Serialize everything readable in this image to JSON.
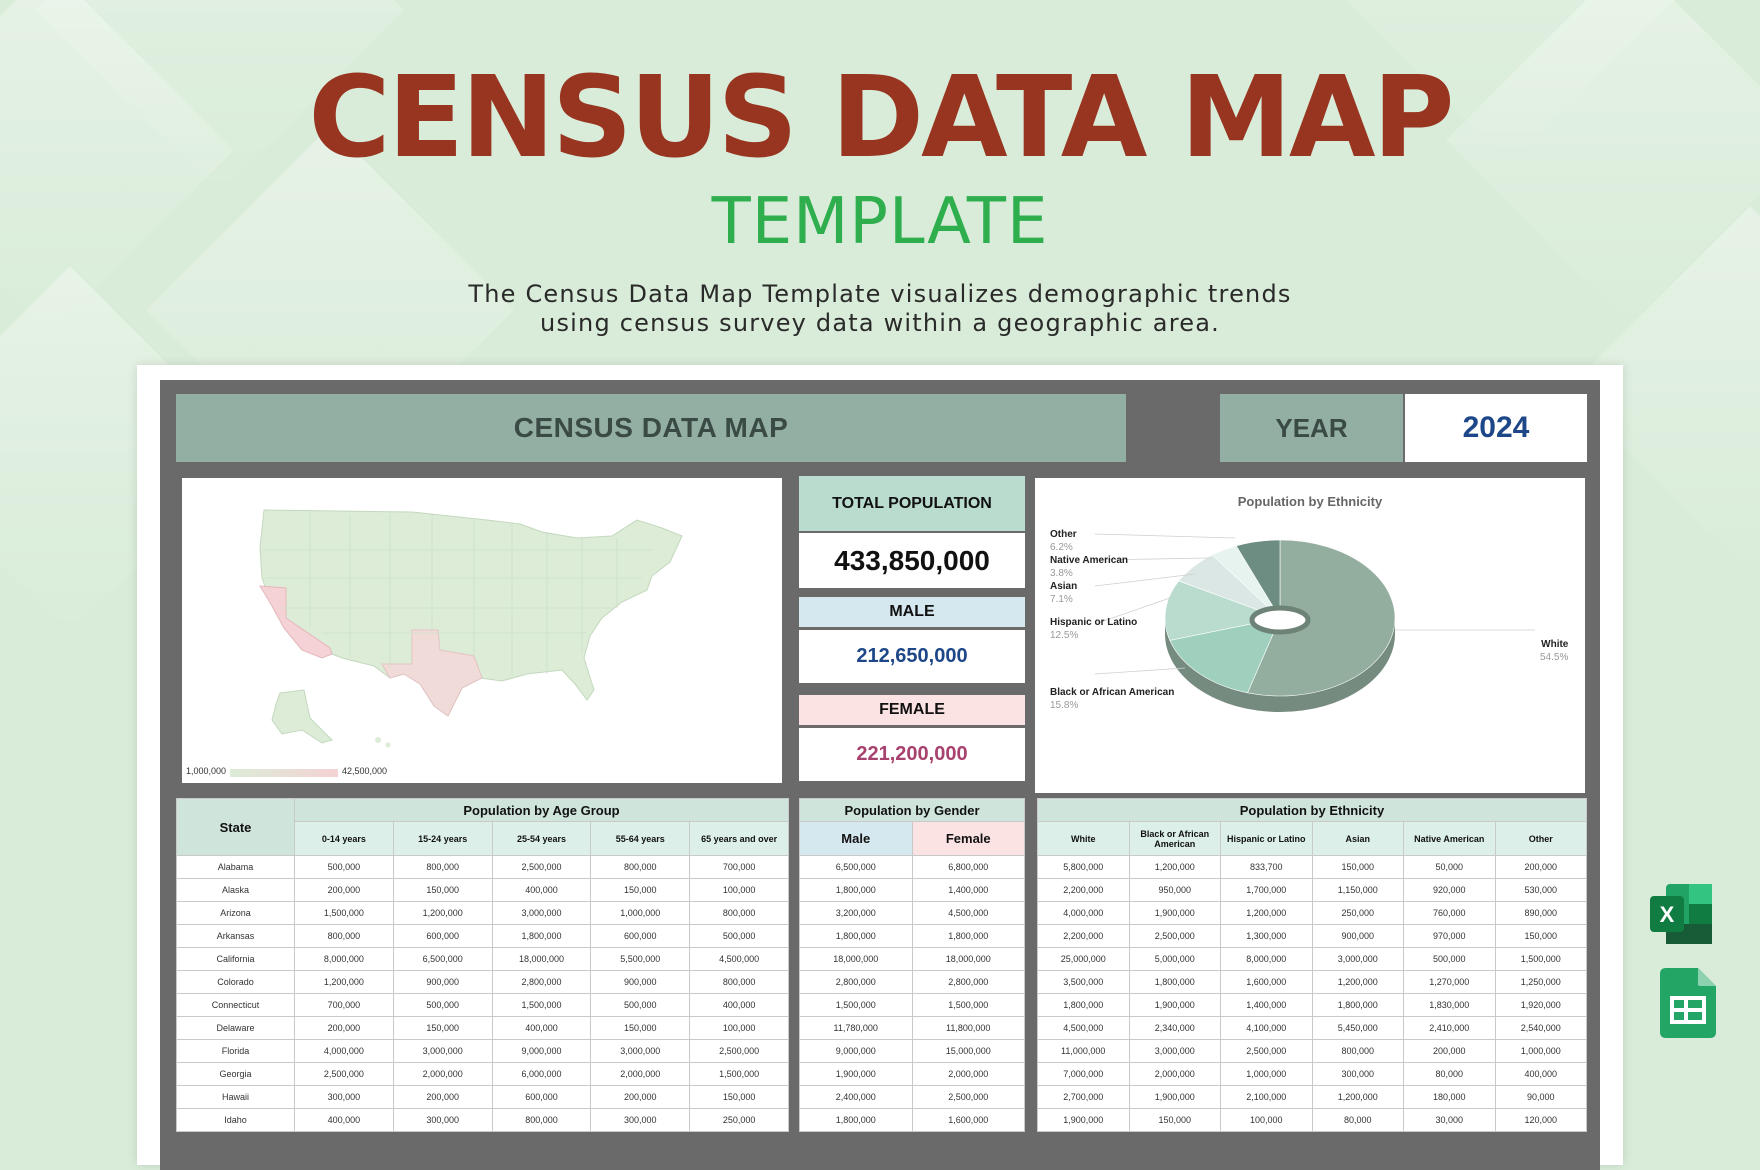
{
  "hero": {
    "title": "CENSUS DATA MAP",
    "subtitle": "TEMPLATE",
    "description_line1": "The Census Data Map Template visualizes demographic trends",
    "description_line2": "using census survey data within a geographic area."
  },
  "dashboard": {
    "title": "CENSUS DATA MAP",
    "year_label": "YEAR",
    "year_value": "2024"
  },
  "map": {
    "legend_min": "1,000,000",
    "legend_max": "42,500,000",
    "color_low": "#dcecd6",
    "color_high": "#f4d2d5"
  },
  "kpis": {
    "total_label": "TOTAL POPULATION",
    "total_value": "433,850,000",
    "male_label": "MALE",
    "male_value": "212,650,000",
    "female_label": "FEMALE",
    "female_value": "221,200,000"
  },
  "colors": {
    "brand_red": "#983521",
    "brand_green": "#2fae4e",
    "male_blue": "#1d4788",
    "female_pink": "#a8416e"
  },
  "chart_data": {
    "type": "pie",
    "title": "Population by Ethnicity",
    "labels": [
      "White",
      "Black or African American",
      "Hispanic or Latino",
      "Asian",
      "Native American",
      "Other"
    ],
    "values": [
      54.5,
      15.8,
      12.5,
      7.1,
      3.8,
      6.2
    ],
    "value_labels": [
      "54.5%",
      "15.8%",
      "12.5%",
      "7.1%",
      "3.8%",
      "6.2%"
    ],
    "colors": [
      "#93ae9f",
      "#9fcfbd",
      "#b9dccf",
      "#dbe7e4",
      "#e6f3ef",
      "#6d8d83"
    ],
    "donut": true
  },
  "tables": {
    "state_header": "State",
    "age_group_title": "Population by Age Group",
    "age_columns": [
      "0-14 years",
      "15-24 years",
      "25-54 years",
      "55-64 years",
      "65 years and over"
    ],
    "gender_title": "Population by Gender",
    "gender_columns": [
      "Male",
      "Female"
    ],
    "ethnicity_title": "Population by Ethnicity",
    "ethnicity_columns": [
      "White",
      "Black or African American",
      "Hispanic or Latino",
      "Asian",
      "Native American",
      "Other"
    ],
    "rows": [
      {
        "state": "Alabama",
        "age": [
          "500,000",
          "800,000",
          "2,500,000",
          "800,000",
          "700,000"
        ],
        "gender": [
          "6,500,000",
          "6,800,000"
        ],
        "eth": [
          "5,800,000",
          "1,200,000",
          "833,700",
          "150,000",
          "50,000",
          "200,000"
        ]
      },
      {
        "state": "Alaska",
        "age": [
          "200,000",
          "150,000",
          "400,000",
          "150,000",
          "100,000"
        ],
        "gender": [
          "1,800,000",
          "1,400,000"
        ],
        "eth": [
          "2,200,000",
          "950,000",
          "1,700,000",
          "1,150,000",
          "920,000",
          "530,000"
        ]
      },
      {
        "state": "Arizona",
        "age": [
          "1,500,000",
          "1,200,000",
          "3,000,000",
          "1,000,000",
          "800,000"
        ],
        "gender": [
          "3,200,000",
          "4,500,000"
        ],
        "eth": [
          "4,000,000",
          "1,900,000",
          "1,200,000",
          "250,000",
          "760,000",
          "890,000"
        ]
      },
      {
        "state": "Arkansas",
        "age": [
          "800,000",
          "600,000",
          "1,800,000",
          "600,000",
          "500,000"
        ],
        "gender": [
          "1,800,000",
          "1,800,000"
        ],
        "eth": [
          "2,200,000",
          "2,500,000",
          "1,300,000",
          "900,000",
          "970,000",
          "150,000"
        ]
      },
      {
        "state": "California",
        "age": [
          "8,000,000",
          "6,500,000",
          "18,000,000",
          "5,500,000",
          "4,500,000"
        ],
        "gender": [
          "18,000,000",
          "18,000,000"
        ],
        "eth": [
          "25,000,000",
          "5,000,000",
          "8,000,000",
          "3,000,000",
          "500,000",
          "1,500,000"
        ]
      },
      {
        "state": "Colorado",
        "age": [
          "1,200,000",
          "900,000",
          "2,800,000",
          "900,000",
          "800,000"
        ],
        "gender": [
          "2,800,000",
          "2,800,000"
        ],
        "eth": [
          "3,500,000",
          "1,800,000",
          "1,600,000",
          "1,200,000",
          "1,270,000",
          "1,250,000"
        ]
      },
      {
        "state": "Connecticut",
        "age": [
          "700,000",
          "500,000",
          "1,500,000",
          "500,000",
          "400,000"
        ],
        "gender": [
          "1,500,000",
          "1,500,000"
        ],
        "eth": [
          "1,800,000",
          "1,900,000",
          "1,400,000",
          "1,800,000",
          "1,830,000",
          "1,920,000"
        ]
      },
      {
        "state": "Delaware",
        "age": [
          "200,000",
          "150,000",
          "400,000",
          "150,000",
          "100,000"
        ],
        "gender": [
          "11,780,000",
          "11,800,000"
        ],
        "eth": [
          "4,500,000",
          "2,340,000",
          "4,100,000",
          "5,450,000",
          "2,410,000",
          "2,540,000"
        ]
      },
      {
        "state": "Florida",
        "age": [
          "4,000,000",
          "3,000,000",
          "9,000,000",
          "3,000,000",
          "2,500,000"
        ],
        "gender": [
          "9,000,000",
          "15,000,000"
        ],
        "eth": [
          "11,000,000",
          "3,000,000",
          "2,500,000",
          "800,000",
          "200,000",
          "1,000,000"
        ]
      },
      {
        "state": "Georgia",
        "age": [
          "2,500,000",
          "2,000,000",
          "6,000,000",
          "2,000,000",
          "1,500,000"
        ],
        "gender": [
          "1,900,000",
          "2,000,000"
        ],
        "eth": [
          "7,000,000",
          "2,000,000",
          "1,000,000",
          "300,000",
          "80,000",
          "400,000"
        ]
      },
      {
        "state": "Hawaii",
        "age": [
          "300,000",
          "200,000",
          "600,000",
          "200,000",
          "150,000"
        ],
        "gender": [
          "2,400,000",
          "2,500,000"
        ],
        "eth": [
          "2,700,000",
          "1,900,000",
          "2,100,000",
          "1,200,000",
          "180,000",
          "90,000"
        ]
      },
      {
        "state": "Idaho",
        "age": [
          "400,000",
          "300,000",
          "800,000",
          "300,000",
          "250,000"
        ],
        "gender": [
          "1,800,000",
          "1,600,000"
        ],
        "eth": [
          "1,900,000",
          "150,000",
          "100,000",
          "80,000",
          "30,000",
          "120,000"
        ]
      }
    ]
  }
}
